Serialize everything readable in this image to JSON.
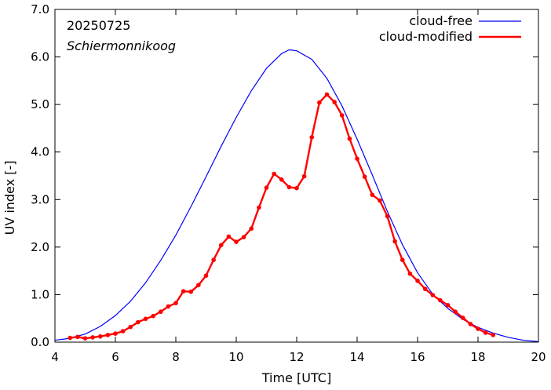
{
  "chart_data": {
    "type": "line",
    "annotations": {
      "date": "20250725",
      "location": "Schiermonnikoog"
    },
    "xlabel": "Time  [UTC]",
    "ylabel": "UV index  [-]",
    "xlim": [
      4,
      20
    ],
    "ylim": [
      0,
      7
    ],
    "x_ticks": [
      4,
      6,
      8,
      10,
      12,
      14,
      16,
      18,
      20
    ],
    "x_tick_labels": [
      "4",
      "6",
      "8",
      "10",
      "12",
      "14",
      "16",
      "18",
      "20"
    ],
    "y_ticks": [
      0,
      1,
      2,
      3,
      4,
      5,
      6,
      7
    ],
    "y_tick_labels": [
      "0.0",
      "1.0",
      "2.0",
      "3.0",
      "4.0",
      "5.0",
      "6.0",
      "7.0"
    ],
    "legend_position": "top-right",
    "grid": false,
    "series": [
      {
        "name": "cloud-free",
        "color": "#0000ff",
        "markers": false,
        "points": [
          [
            4.0,
            0.04
          ],
          [
            4.5,
            0.08
          ],
          [
            5.0,
            0.17
          ],
          [
            5.5,
            0.33
          ],
          [
            6.0,
            0.56
          ],
          [
            6.5,
            0.86
          ],
          [
            7.0,
            1.25
          ],
          [
            7.5,
            1.72
          ],
          [
            8.0,
            2.25
          ],
          [
            8.5,
            2.85
          ],
          [
            9.0,
            3.48
          ],
          [
            9.5,
            4.12
          ],
          [
            10.0,
            4.73
          ],
          [
            10.5,
            5.29
          ],
          [
            11.0,
            5.76
          ],
          [
            11.5,
            6.07
          ],
          [
            11.75,
            6.15
          ],
          [
            12.0,
            6.13
          ],
          [
            12.5,
            5.95
          ],
          [
            13.0,
            5.55
          ],
          [
            13.5,
            4.97
          ],
          [
            14.0,
            4.27
          ],
          [
            14.5,
            3.52
          ],
          [
            15.0,
            2.75
          ],
          [
            15.5,
            2.05
          ],
          [
            16.0,
            1.46
          ],
          [
            16.5,
            1.01
          ],
          [
            17.0,
            0.71
          ],
          [
            17.5,
            0.48
          ],
          [
            18.0,
            0.31
          ],
          [
            18.5,
            0.19
          ],
          [
            19.0,
            0.1
          ],
          [
            19.5,
            0.04
          ],
          [
            20.0,
            0.01
          ]
        ]
      },
      {
        "name": "cloud-modified",
        "color": "#ff0000",
        "markers": true,
        "points": [
          [
            4.5,
            0.09
          ],
          [
            4.75,
            0.11
          ],
          [
            5.0,
            0.08
          ],
          [
            5.25,
            0.1
          ],
          [
            5.5,
            0.12
          ],
          [
            5.75,
            0.15
          ],
          [
            6.0,
            0.18
          ],
          [
            6.25,
            0.23
          ],
          [
            6.5,
            0.32
          ],
          [
            6.75,
            0.42
          ],
          [
            7.0,
            0.49
          ],
          [
            7.25,
            0.55
          ],
          [
            7.5,
            0.64
          ],
          [
            7.75,
            0.75
          ],
          [
            8.0,
            0.82
          ],
          [
            8.25,
            1.07
          ],
          [
            8.5,
            1.06
          ],
          [
            8.75,
            1.2
          ],
          [
            9.0,
            1.4
          ],
          [
            9.25,
            1.73
          ],
          [
            9.5,
            2.04
          ],
          [
            9.75,
            2.22
          ],
          [
            10.0,
            2.11
          ],
          [
            10.25,
            2.21
          ],
          [
            10.5,
            2.39
          ],
          [
            10.75,
            2.83
          ],
          [
            11.0,
            3.25
          ],
          [
            11.25,
            3.54
          ],
          [
            11.5,
            3.42
          ],
          [
            11.75,
            3.26
          ],
          [
            12.0,
            3.24
          ],
          [
            12.25,
            3.49
          ],
          [
            12.5,
            4.31
          ],
          [
            12.75,
            5.04
          ],
          [
            13.0,
            5.21
          ],
          [
            13.25,
            5.05
          ],
          [
            13.5,
            4.77
          ],
          [
            13.75,
            4.28
          ],
          [
            14.0,
            3.86
          ],
          [
            14.25,
            3.48
          ],
          [
            14.5,
            3.1
          ],
          [
            14.75,
            2.98
          ],
          [
            15.0,
            2.65
          ],
          [
            15.25,
            2.12
          ],
          [
            15.5,
            1.73
          ],
          [
            15.75,
            1.44
          ],
          [
            16.0,
            1.29
          ],
          [
            16.25,
            1.12
          ],
          [
            16.5,
            0.99
          ],
          [
            16.75,
            0.88
          ],
          [
            17.0,
            0.78
          ],
          [
            17.25,
            0.64
          ],
          [
            17.5,
            0.51
          ],
          [
            17.75,
            0.38
          ],
          [
            18.0,
            0.28
          ],
          [
            18.25,
            0.2
          ],
          [
            18.5,
            0.15
          ]
        ]
      }
    ]
  }
}
